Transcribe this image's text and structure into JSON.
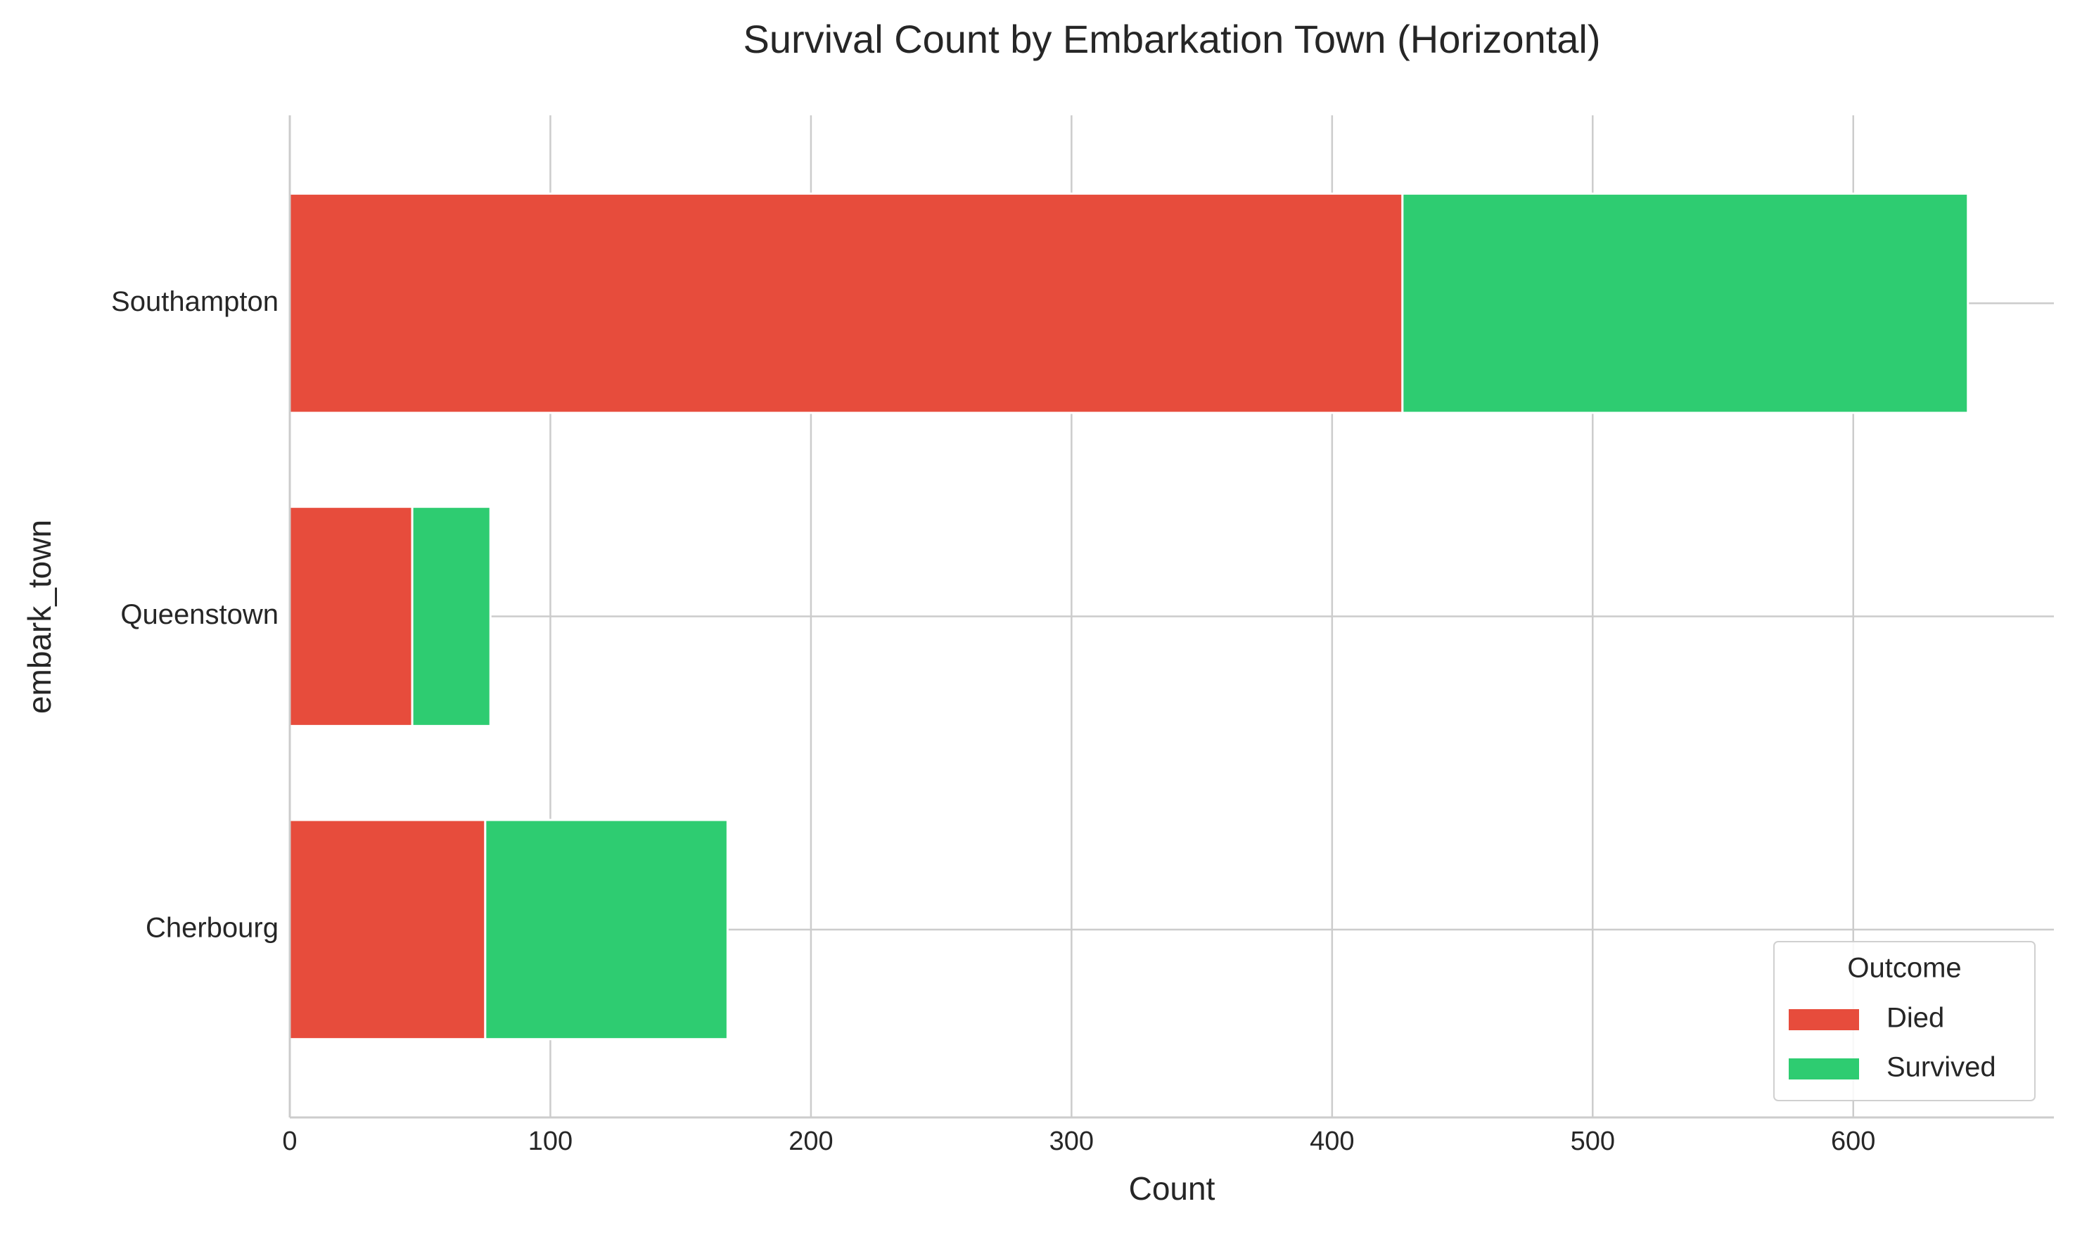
{
  "chart_data": {
    "type": "stacked-barh",
    "title": "Survival Count by Embarkation Town (Horizontal)",
    "x_label": "Count",
    "y_label": "embark_town",
    "categories": [
      "Cherbourg",
      "Queenstown",
      "Southampton"
    ],
    "series": [
      {
        "name": "Died",
        "color": "#e74c3c",
        "values": [
          75,
          47,
          427
        ]
      },
      {
        "name": "Survived",
        "color": "#2ecc71",
        "values": [
          93,
          30,
          217
        ]
      }
    ],
    "xlim": [
      0,
      677
    ],
    "xticks": [
      0,
      100,
      200,
      300,
      400,
      500,
      600
    ],
    "grid": true,
    "legend_title": "Outcome",
    "legend_position": "lower-right"
  }
}
